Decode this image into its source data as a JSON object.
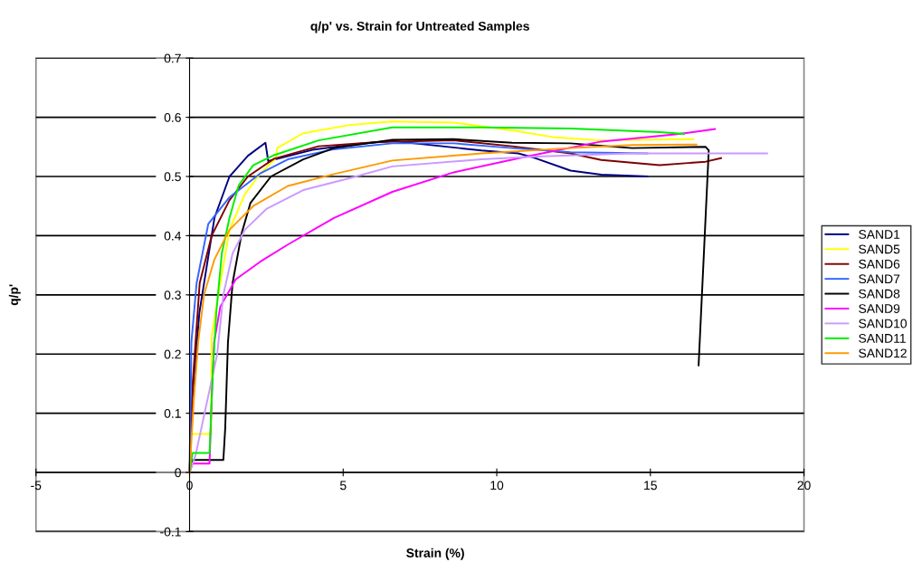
{
  "chart_data": {
    "type": "line",
    "title": "q/p' vs. Strain for Untreated Samples",
    "xlabel": "Strain (%)",
    "ylabel": "q/p'",
    "xlim": [
      -5,
      20
    ],
    "xticks": [
      -5,
      0,
      5,
      10,
      15,
      20
    ],
    "ylim": [
      -0.1,
      0.7
    ],
    "yticks": [
      -0.1,
      0,
      0.1,
      0.2,
      0.3,
      0.4,
      0.5,
      0.6,
      0.7
    ],
    "grid": "y",
    "legend": "right",
    "marker": "none",
    "line_style": "solid",
    "series": [
      {
        "name": "SAND1",
        "color": "#000080",
        "x": [
          0,
          0.09,
          0.32,
          0.81,
          1.3,
          1.9,
          2.47,
          2.56,
          4,
          5.5,
          6.6,
          9.5,
          10.7,
          11.2,
          12.4,
          13.4,
          14.9
        ],
        "values": [
          0,
          0.124,
          0.27,
          0.43,
          0.5,
          0.535,
          0.557,
          0.526,
          0.545,
          0.555,
          0.56,
          0.544,
          0.539,
          0.532,
          0.51,
          0.503,
          0.5
        ]
      },
      {
        "name": "SAND5",
        "color": "#ffff00",
        "x": [
          0,
          0.05,
          0.7,
          0.72,
          1.0,
          1.3,
          1.8,
          2.3,
          2.8,
          2.85,
          3.7,
          5.2,
          6.6,
          8.6,
          10.5,
          11.9,
          13.4,
          16.4
        ],
        "values": [
          0,
          0.065,
          0.065,
          0.23,
          0.32,
          0.41,
          0.47,
          0.505,
          0.53,
          0.548,
          0.573,
          0.587,
          0.593,
          0.591,
          0.578,
          0.566,
          0.561,
          0.563
        ]
      },
      {
        "name": "SAND6",
        "color": "#800000",
        "x": [
          0,
          0.1,
          0.33,
          0.72,
          1.3,
          1.9,
          2.75,
          4.2,
          6.1,
          8.6,
          10.5,
          12.4,
          13.4,
          15.3,
          16.8,
          17.3
        ],
        "values": [
          0,
          0.15,
          0.32,
          0.4,
          0.46,
          0.5,
          0.53,
          0.551,
          0.558,
          0.561,
          0.551,
          0.539,
          0.528,
          0.519,
          0.525,
          0.531
        ]
      },
      {
        "name": "SAND7",
        "color": "#3366ff",
        "x": [
          0,
          0.06,
          0.23,
          0.61,
          1.3,
          2.3,
          3.2,
          4.7,
          6.6,
          8.6,
          10.5,
          12.4,
          14.9
        ],
        "values": [
          0,
          0.22,
          0.32,
          0.42,
          0.465,
          0.505,
          0.529,
          0.546,
          0.556,
          0.556,
          0.548,
          0.541,
          0.539
        ]
      },
      {
        "name": "SAND8",
        "color": "#000000",
        "x": [
          0,
          0.1,
          1.1,
          1.16,
          1.25,
          1.4,
          1.7,
          1.98,
          2.65,
          3.7,
          4.7,
          6.6,
          8.6,
          10.5,
          12.4,
          14.4,
          16.8,
          16.9,
          16.57
        ],
        "values": [
          0,
          0.021,
          0.021,
          0.074,
          0.22,
          0.32,
          0.405,
          0.455,
          0.5,
          0.529,
          0.548,
          0.562,
          0.563,
          0.557,
          0.556,
          0.548,
          0.55,
          0.544,
          0.181
        ]
      },
      {
        "name": "SAND9",
        "color": "#ff00ff",
        "x": [
          0,
          0.1,
          0.65,
          0.72,
          0.8,
          1.0,
          1.5,
          2.3,
          3.2,
          4.7,
          6.6,
          8.6,
          11.0,
          13.4,
          15.8,
          17.1
        ],
        "values": [
          0,
          0.015,
          0.015,
          0.124,
          0.22,
          0.28,
          0.326,
          0.356,
          0.385,
          0.43,
          0.474,
          0.507,
          0.534,
          0.559,
          0.571,
          0.58
        ]
      },
      {
        "name": "SAND10",
        "color": "#cc99ff",
        "x": [
          0,
          0.2,
          0.9,
          1.1,
          1.4,
          1.8,
          2.5,
          3.7,
          5.2,
          6.6,
          9.5,
          11.5,
          14.4,
          17.3,
          18.8
        ],
        "values": [
          0,
          0.03,
          0.2,
          0.3,
          0.37,
          0.41,
          0.445,
          0.477,
          0.497,
          0.517,
          0.529,
          0.534,
          0.539,
          0.539,
          0.539
        ]
      },
      {
        "name": "SAND11",
        "color": "#00ee00",
        "x": [
          0,
          0.1,
          0.65,
          0.76,
          0.87,
          1.05,
          1.3,
          1.6,
          2.07,
          2.75,
          4.2,
          6.6,
          9.5,
          12.4,
          15.3,
          16.1
        ],
        "values": [
          0,
          0.033,
          0.033,
          0.173,
          0.27,
          0.37,
          0.43,
          0.485,
          0.519,
          0.536,
          0.561,
          0.583,
          0.583,
          0.581,
          0.575,
          0.572
        ]
      },
      {
        "name": "SAND12",
        "color": "#ff9900",
        "x": [
          0,
          0.14,
          0.28,
          0.47,
          0.81,
          1.3,
          2.07,
          3.2,
          4.7,
          6.6,
          9.5,
          12.4,
          14.4,
          16.5
        ],
        "values": [
          0,
          0.124,
          0.22,
          0.3,
          0.36,
          0.41,
          0.45,
          0.484,
          0.504,
          0.527,
          0.539,
          0.548,
          0.553,
          0.554
        ]
      }
    ]
  }
}
